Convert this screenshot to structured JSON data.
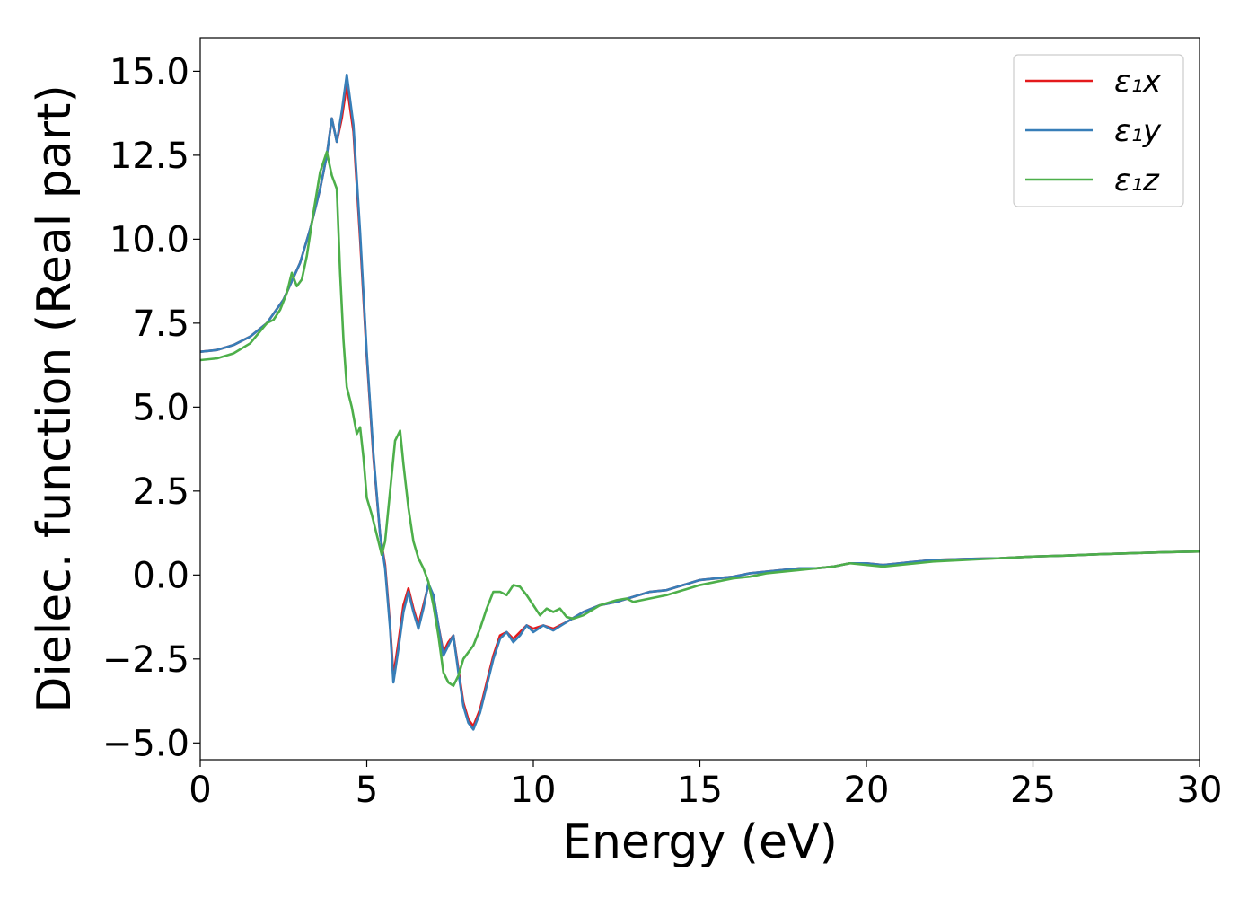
{
  "chart_data": {
    "type": "line",
    "xlabel": "Energy (eV)",
    "ylabel": "Dielec. function (Real part)",
    "xlim": [
      0,
      30
    ],
    "ylim": [
      -5.5,
      16
    ],
    "xticks": [
      0,
      5,
      10,
      15,
      20,
      25,
      30
    ],
    "xtick_labels": [
      "0",
      "5",
      "10",
      "15",
      "20",
      "25",
      "30"
    ],
    "yticks": [
      -5,
      -2.5,
      0,
      2.5,
      5,
      7.5,
      10,
      12.5,
      15
    ],
    "ytick_labels": [
      "−5.0",
      "−2.5",
      "0.0",
      "2.5",
      "5.0",
      "7.5",
      "10.0",
      "12.5",
      "15.0"
    ],
    "legend_position": "top-right",
    "grid": false,
    "series": [
      {
        "name": "ε₁x",
        "color": "#e41a1c",
        "x": [
          0,
          0.5,
          1.0,
          1.5,
          2.0,
          2.5,
          3.0,
          3.3,
          3.6,
          3.8,
          3.95,
          4.1,
          4.25,
          4.4,
          4.6,
          4.8,
          5.0,
          5.2,
          5.4,
          5.55,
          5.7,
          5.8,
          5.95,
          6.1,
          6.25,
          6.4,
          6.55,
          6.7,
          6.85,
          7.0,
          7.15,
          7.3,
          7.45,
          7.6,
          7.75,
          7.9,
          8.05,
          8.2,
          8.4,
          8.6,
          8.8,
          9.0,
          9.2,
          9.4,
          9.6,
          9.8,
          10.0,
          10.3,
          10.6,
          11.0,
          11.5,
          12.0,
          12.5,
          13.0,
          13.5,
          14.0,
          14.5,
          15.0,
          15.5,
          16.0,
          16.5,
          17.0,
          17.5,
          18.0,
          18.5,
          19.0,
          19.5,
          20.0,
          20.5,
          21.0,
          21.5,
          22.0,
          23.0,
          24.0,
          25.0,
          26.0,
          27.0,
          28.0,
          29.0,
          30.0
        ],
        "y": [
          6.65,
          6.7,
          6.85,
          7.1,
          7.5,
          8.2,
          9.3,
          10.3,
          11.5,
          12.5,
          13.6,
          12.9,
          13.6,
          14.6,
          13.2,
          10.0,
          6.5,
          3.5,
          1.2,
          0.3,
          -1.5,
          -3.0,
          -2.0,
          -0.9,
          -0.4,
          -1.0,
          -1.5,
          -0.9,
          -0.3,
          -0.6,
          -1.5,
          -2.3,
          -2.0,
          -1.8,
          -2.8,
          -3.8,
          -4.3,
          -4.5,
          -4.0,
          -3.2,
          -2.4,
          -1.8,
          -1.7,
          -1.9,
          -1.7,
          -1.5,
          -1.6,
          -1.5,
          -1.6,
          -1.4,
          -1.1,
          -0.9,
          -0.8,
          -0.65,
          -0.5,
          -0.45,
          -0.3,
          -0.15,
          -0.1,
          -0.05,
          0.05,
          0.1,
          0.15,
          0.2,
          0.2,
          0.25,
          0.35,
          0.35,
          0.3,
          0.35,
          0.4,
          0.45,
          0.48,
          0.5,
          0.55,
          0.58,
          0.62,
          0.65,
          0.68,
          0.7
        ]
      },
      {
        "name": "ε₁y",
        "color": "#377eb8",
        "x": [
          0,
          0.5,
          1.0,
          1.5,
          2.0,
          2.5,
          3.0,
          3.3,
          3.6,
          3.8,
          3.95,
          4.1,
          4.25,
          4.4,
          4.6,
          4.8,
          5.0,
          5.2,
          5.4,
          5.55,
          5.7,
          5.8,
          5.95,
          6.1,
          6.25,
          6.4,
          6.55,
          6.7,
          6.85,
          7.0,
          7.15,
          7.3,
          7.45,
          7.6,
          7.75,
          7.9,
          8.05,
          8.2,
          8.4,
          8.6,
          8.8,
          9.0,
          9.2,
          9.4,
          9.6,
          9.8,
          10.0,
          10.3,
          10.6,
          11.0,
          11.5,
          12.0,
          12.5,
          13.0,
          13.5,
          14.0,
          14.5,
          15.0,
          15.5,
          16.0,
          16.5,
          17.0,
          17.5,
          18.0,
          18.5,
          19.0,
          19.5,
          20.0,
          20.5,
          21.0,
          21.5,
          22.0,
          23.0,
          24.0,
          25.0,
          26.0,
          27.0,
          28.0,
          29.0,
          30.0
        ],
        "y": [
          6.65,
          6.7,
          6.85,
          7.1,
          7.5,
          8.2,
          9.3,
          10.3,
          11.5,
          12.5,
          13.6,
          12.9,
          13.8,
          14.9,
          13.4,
          10.2,
          6.6,
          3.6,
          1.2,
          0.2,
          -1.6,
          -3.2,
          -2.2,
          -1.1,
          -0.5,
          -1.1,
          -1.6,
          -1.0,
          -0.25,
          -0.6,
          -1.5,
          -2.4,
          -2.1,
          -1.8,
          -2.9,
          -3.9,
          -4.4,
          -4.6,
          -4.1,
          -3.3,
          -2.5,
          -1.9,
          -1.7,
          -2.0,
          -1.8,
          -1.5,
          -1.7,
          -1.5,
          -1.65,
          -1.4,
          -1.1,
          -0.9,
          -0.8,
          -0.65,
          -0.5,
          -0.45,
          -0.3,
          -0.15,
          -0.1,
          -0.05,
          0.05,
          0.1,
          0.15,
          0.2,
          0.2,
          0.25,
          0.35,
          0.35,
          0.3,
          0.35,
          0.4,
          0.45,
          0.48,
          0.5,
          0.55,
          0.58,
          0.62,
          0.65,
          0.68,
          0.7
        ]
      },
      {
        "name": "ε₁z",
        "color": "#4daf4a",
        "x": [
          0,
          0.5,
          1.0,
          1.5,
          2.0,
          2.2,
          2.4,
          2.6,
          2.75,
          2.9,
          3.05,
          3.2,
          3.4,
          3.6,
          3.8,
          3.95,
          4.1,
          4.2,
          4.3,
          4.4,
          4.55,
          4.7,
          4.8,
          4.9,
          5.0,
          5.15,
          5.3,
          5.45,
          5.55,
          5.7,
          5.85,
          6.0,
          6.1,
          6.25,
          6.4,
          6.55,
          6.7,
          6.85,
          7.0,
          7.15,
          7.3,
          7.45,
          7.6,
          7.75,
          7.9,
          8.05,
          8.2,
          8.4,
          8.6,
          8.8,
          9.0,
          9.2,
          9.4,
          9.6,
          9.8,
          10.0,
          10.2,
          10.4,
          10.6,
          10.8,
          11.0,
          11.2,
          11.5,
          12.0,
          12.5,
          12.8,
          13.0,
          13.5,
          14.0,
          14.5,
          15.0,
          15.5,
          16.0,
          16.5,
          17.0,
          17.5,
          18.0,
          18.5,
          19.0,
          19.5,
          20.0,
          20.5,
          21.0,
          21.5,
          22.0,
          23.0,
          24.0,
          25.0,
          26.0,
          27.0,
          28.0,
          29.0,
          30.0
        ],
        "y": [
          6.4,
          6.45,
          6.6,
          6.9,
          7.5,
          7.6,
          7.9,
          8.4,
          9.0,
          8.6,
          8.8,
          9.5,
          10.8,
          12.0,
          12.6,
          11.9,
          11.5,
          9.0,
          7.0,
          5.6,
          5.0,
          4.2,
          4.4,
          3.5,
          2.3,
          1.8,
          1.2,
          0.6,
          1.0,
          2.5,
          4.0,
          4.3,
          3.3,
          2.0,
          1.0,
          0.5,
          0.2,
          -0.2,
          -0.9,
          -1.8,
          -2.9,
          -3.2,
          -3.3,
          -3.0,
          -2.5,
          -2.3,
          -2.1,
          -1.6,
          -1.0,
          -0.5,
          -0.5,
          -0.6,
          -0.3,
          -0.35,
          -0.6,
          -0.9,
          -1.2,
          -1.0,
          -1.1,
          -1.0,
          -1.25,
          -1.3,
          -1.2,
          -0.9,
          -0.75,
          -0.7,
          -0.8,
          -0.7,
          -0.6,
          -0.45,
          -0.3,
          -0.2,
          -0.1,
          -0.05,
          0.05,
          0.1,
          0.15,
          0.2,
          0.25,
          0.35,
          0.3,
          0.25,
          0.3,
          0.35,
          0.4,
          0.45,
          0.5,
          0.55,
          0.58,
          0.62,
          0.65,
          0.68,
          0.7
        ]
      }
    ]
  }
}
